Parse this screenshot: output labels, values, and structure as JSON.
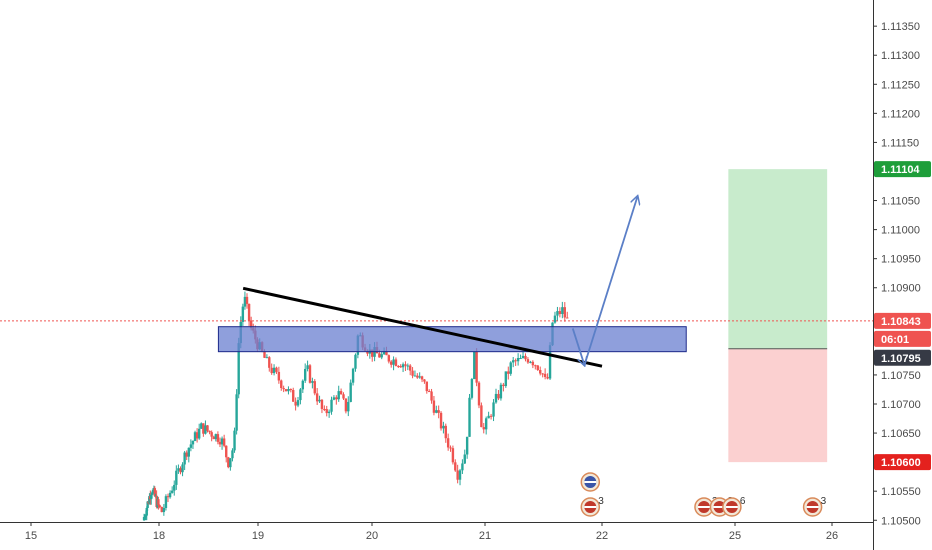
{
  "chart_data": {
    "type": "candlestick",
    "instrument_axis": "price",
    "y_ticks": [
      "1.11350",
      "1.11300",
      "1.11250",
      "1.11200",
      "1.11150",
      "1.11050",
      "1.11000",
      "1.10950",
      "1.10900",
      "1.10750",
      "1.10700",
      "1.10650",
      "1.10550",
      "1.10500"
    ],
    "x_ticks": [
      "15",
      "18",
      "19",
      "20",
      "21",
      "22",
      "25",
      "26"
    ],
    "x_tick_values": [
      15.0,
      18.0,
      19.0,
      20.0,
      21.0,
      22.0,
      25.0,
      26.0
    ],
    "y_range": [
      1.10497,
      1.11395
    ],
    "price_tags": {
      "target": {
        "label": "1.11104",
        "value": 1.11104,
        "color": "#1e9e3a"
      },
      "last_price": {
        "label": "1.10843",
        "value": 1.10843,
        "color": "#ef5350"
      },
      "countdown": {
        "label": "06:01",
        "color": "#ef5350"
      },
      "entry": {
        "label": "1.10795",
        "value": 1.10795,
        "color": "#363a45"
      },
      "stop": {
        "label": "1.10600",
        "value": 1.106,
        "color": "#e4211e"
      }
    },
    "zone": {
      "from_x": 18.6,
      "to_x": 23.9,
      "low": 1.1079,
      "high": 1.10833,
      "color": "#6a7fd0"
    },
    "trendline": {
      "from": [
        18.85,
        1.10899
      ],
      "to": [
        22.0,
        1.10765
      ],
      "color": "#000000"
    },
    "projection_arrows": [
      {
        "from": [
          21.75,
          1.1083
        ],
        "to": [
          21.85,
          1.10767
        ]
      },
      {
        "from": [
          21.85,
          1.10767
        ],
        "to": [
          22.8,
          1.11057
        ]
      }
    ],
    "position": {
      "from_x": 24.85,
      "to_x": 25.95,
      "entry": 1.10795,
      "target": 1.11104,
      "stop": 1.106,
      "profit_color": "#c8ebcc",
      "loss_color": "#fbd0d0"
    },
    "events": [
      {
        "x": 21.9,
        "count": ""
      },
      {
        "x": 21.9,
        "count": "3"
      },
      {
        "x": 24.3,
        "count": "3"
      },
      {
        "x": 24.65,
        "count": "3"
      },
      {
        "x": 24.93,
        "count": "6"
      },
      {
        "x": 25.8,
        "count": "3"
      }
    ],
    "colors": {
      "up": "#26a69a",
      "down": "#ef5350"
    }
  }
}
